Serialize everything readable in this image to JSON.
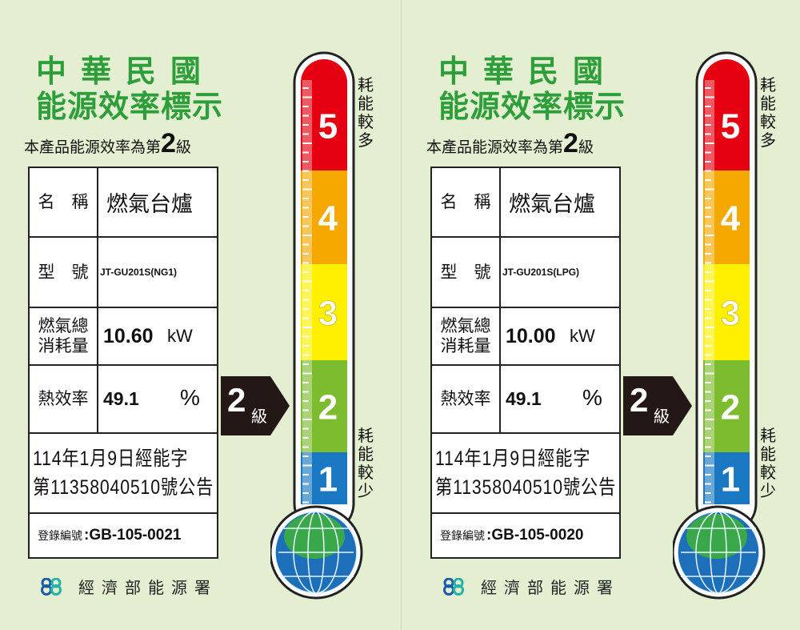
{
  "labels": [
    {
      "title_line1": "中華民國",
      "title_line2": "能源效率標示",
      "grade_prefix": "本產品能源效率為第",
      "grade": "2",
      "grade_suffix": "級",
      "name_label": "名　稱",
      "name_value": "燃氣台爐",
      "model_label": "型　號",
      "model_value": "JT-GU201S(NG1)",
      "consumption_label_1": "燃氣總",
      "consumption_label_2": "消耗量",
      "consumption_value": "10.60",
      "consumption_unit": "kW",
      "efficiency_label": "熱效率",
      "efficiency_value": "49.1",
      "efficiency_unit": "%",
      "notice_line1": "114年1月9日經能字",
      "notice_line2": "第11358040510號公告",
      "reg_label": "登錄編號",
      "reg_value": ":GB-105-0021"
    },
    {
      "title_line1": "中華民國",
      "title_line2": "能源效率標示",
      "grade_prefix": "本產品能源效率為第",
      "grade": "2",
      "grade_suffix": "級",
      "name_label": "名　稱",
      "name_value": "燃氣台爐",
      "model_label": "型　號",
      "model_value": "JT-GU201S(LPG)",
      "consumption_label_1": "燃氣總",
      "consumption_label_2": "消耗量",
      "consumption_value": "10.00",
      "consumption_unit": "kW",
      "efficiency_label": "熱效率",
      "efficiency_value": "49.1",
      "efficiency_unit": "%",
      "notice_line1": "114年1月9日經能字",
      "notice_line2": "第11358040510號公告",
      "reg_label": "登錄編號",
      "reg_value": ":GB-105-0020"
    }
  ],
  "thermometer": {
    "levels": [
      "5",
      "4",
      "3",
      "2",
      "1"
    ],
    "colors": [
      "#e50012",
      "#f5a800",
      "#fff000",
      "#7dbb2f",
      "#1a78c2"
    ],
    "top_text": "耗能較多",
    "bottom_text": "耗能較少",
    "current_level": 2
  },
  "arrow": {
    "grade": "2",
    "suffix": "級"
  },
  "footer": {
    "agency": "經濟部能源署"
  },
  "colors": {
    "background": "#e4efd2",
    "title": "#2e9e3a"
  }
}
